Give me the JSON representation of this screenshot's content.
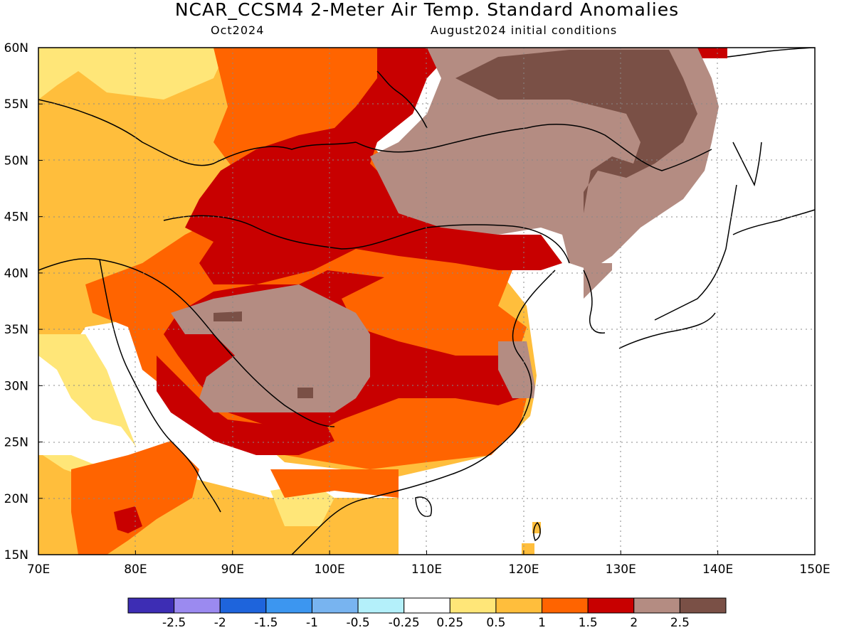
{
  "header": {
    "title": "NCAR_CCSM4 2-Meter Air Temp. Standard Anomalies",
    "valid_month": "Oct2024",
    "initial_conditions": "August2024 initial conditions"
  },
  "map": {
    "lon_range": [
      70,
      150
    ],
    "lat_range": [
      15,
      60
    ],
    "lon_ticks": [
      "70E",
      "80E",
      "90E",
      "100E",
      "110E",
      "120E",
      "130E",
      "140E",
      "150E"
    ],
    "lat_ticks": [
      "60N",
      "55N",
      "50N",
      "45N",
      "40N",
      "35N",
      "30N",
      "25N",
      "20N",
      "15N"
    ]
  },
  "colorbar": {
    "colors": [
      "#3d2db4",
      "#9b8af0",
      "#1e64dc",
      "#3c96f0",
      "#78b4f0",
      "#b4f0fa",
      "#ffffff",
      "#ffe678",
      "#ffbe3c",
      "#ff6400",
      "#c80000",
      "#b48c82",
      "#7a5046"
    ],
    "labels": [
      "-2.5",
      "-2",
      "-1.5",
      "-1",
      "-0.5",
      "-0.25",
      "0.25",
      "0.5",
      "1",
      "1.5",
      "2",
      "2.5"
    ]
  }
}
